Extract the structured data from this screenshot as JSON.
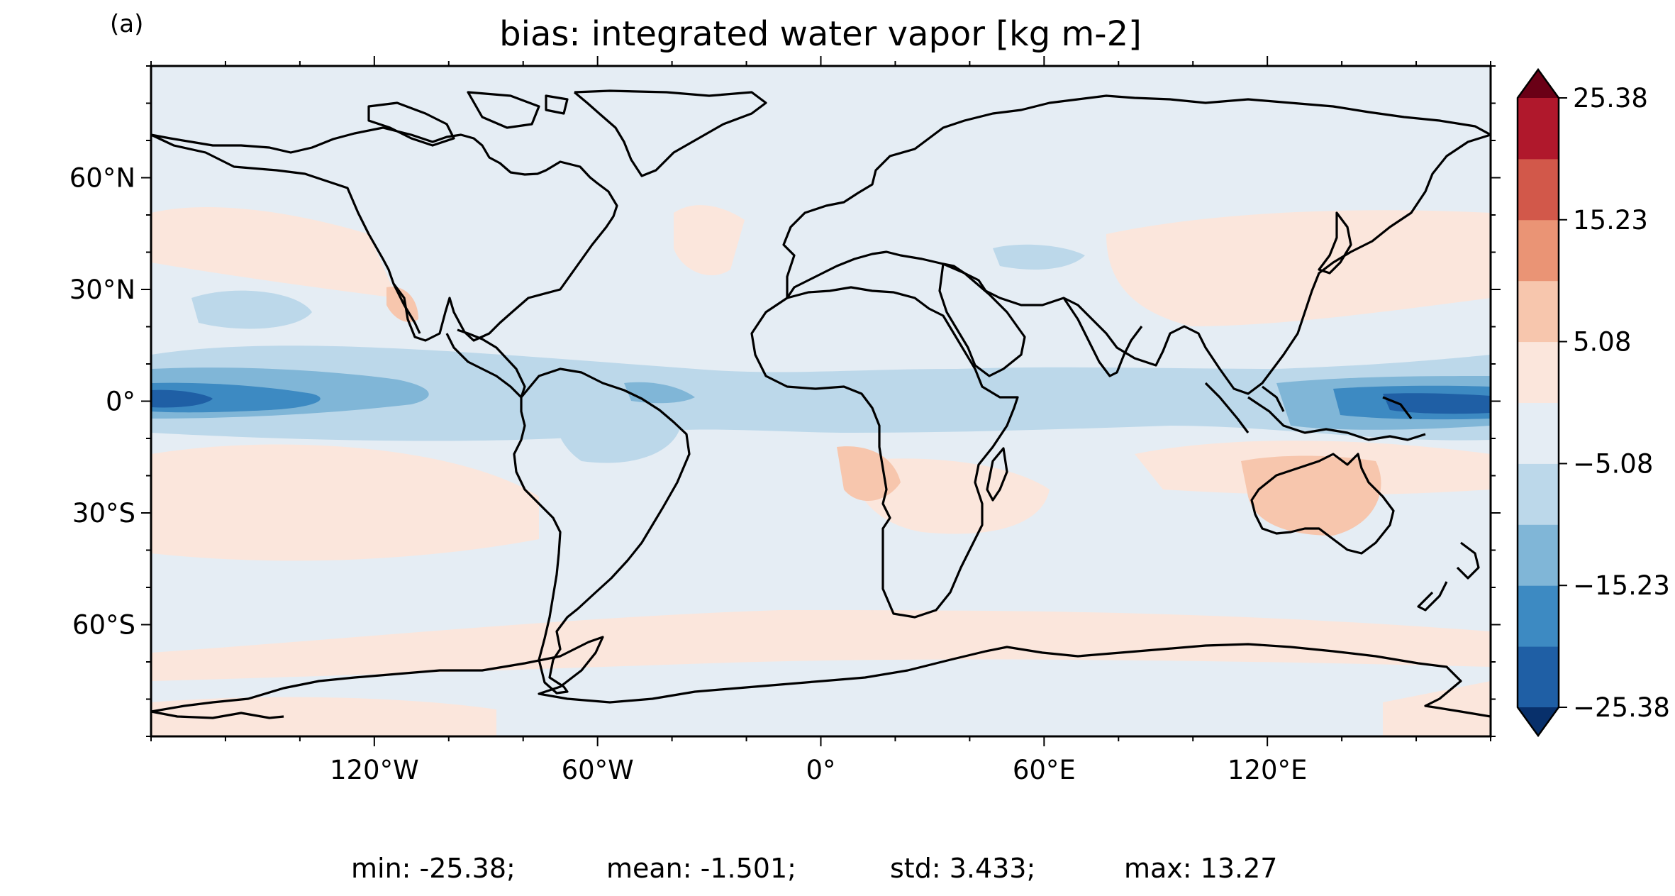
{
  "panel_label": "(a)",
  "title": "bias: integrated water vapor [kg m-2]",
  "map": {
    "projection": "PlateCarree",
    "lon_range": [
      -180,
      180
    ],
    "lat_range": [
      -90,
      90
    ],
    "lat_ticks": [
      {
        "value": 60,
        "label": "60°N"
      },
      {
        "value": 30,
        "label": "30°N"
      },
      {
        "value": 0,
        "label": "0°"
      },
      {
        "value": -30,
        "label": "30°S"
      },
      {
        "value": -60,
        "label": "60°S"
      }
    ],
    "lon_ticks": [
      {
        "value": -120,
        "label": "120°W"
      },
      {
        "value": -60,
        "label": "60°W"
      },
      {
        "value": 0,
        "label": "0°"
      },
      {
        "value": 60,
        "label": "60°E"
      },
      {
        "value": 120,
        "label": "120°E"
      }
    ]
  },
  "colorbar": {
    "min": -25.38,
    "max": 25.38,
    "extend": "both",
    "tick_labels": [
      {
        "value": 25.38,
        "label": "25.38"
      },
      {
        "value": 15.23,
        "label": "15.23"
      },
      {
        "value": 5.08,
        "label": "5.08"
      },
      {
        "value": -5.08,
        "label": "−5.08"
      },
      {
        "value": -15.23,
        "label": "−15.23"
      },
      {
        "value": -25.38,
        "label": "−25.38"
      }
    ],
    "levels": [
      {
        "range": [
          -30.46,
          -25.38
        ],
        "color": "#08306b"
      },
      {
        "range": [
          -25.38,
          -20.31
        ],
        "color": "#1f5fa5"
      },
      {
        "range": [
          -20.31,
          -15.23
        ],
        "color": "#3d8ac2"
      },
      {
        "range": [
          -15.23,
          -10.15
        ],
        "color": "#80b6d7"
      },
      {
        "range": [
          -10.15,
          -5.08
        ],
        "color": "#bcd8ea"
      },
      {
        "range": [
          -5.08,
          0.0
        ],
        "color": "#e5edf4"
      },
      {
        "range": [
          0.0,
          5.08
        ],
        "color": "#fbe6dc"
      },
      {
        "range": [
          5.08,
          10.15
        ],
        "color": "#f7c6ad"
      },
      {
        "range": [
          10.15,
          15.23
        ],
        "color": "#ea9475"
      },
      {
        "range": [
          15.23,
          20.31
        ],
        "color": "#d2584a"
      },
      {
        "range": [
          20.31,
          25.38
        ],
        "color": "#b0182c"
      },
      {
        "range": [
          25.38,
          30.46
        ],
        "color": "#6a0016"
      }
    ]
  },
  "stats": {
    "min": "min: -25.38;",
    "mean": "mean: -1.501;",
    "std": "std: 3.433;",
    "max": "max: 13.27"
  }
}
